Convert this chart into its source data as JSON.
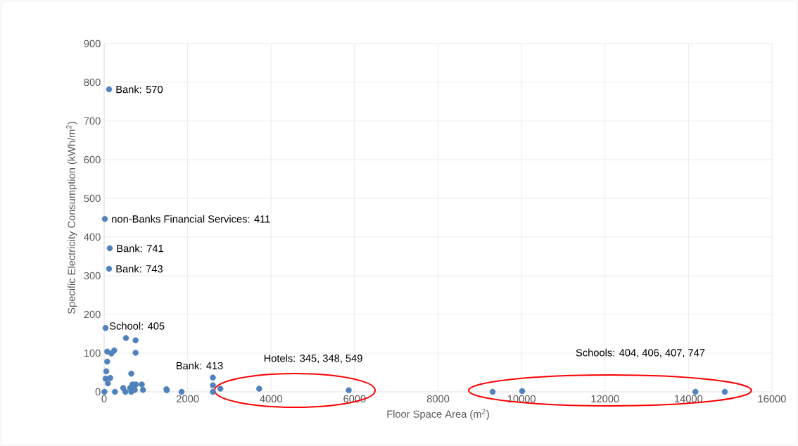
{
  "chart_data": {
    "type": "scatter",
    "xlabel": "Floor Space Area (m$^{2}$)",
    "ylabel": "Specific Electricity Consumption (kWh/m$^{2}$)",
    "x": [
      118,
      17,
      135,
      118,
      34,
      522,
      753,
      73,
      174,
      241,
      753,
      73,
      51,
      650,
      34,
      146,
      90,
      6,
      258,
      455,
      510,
      623,
      678,
      762,
      902,
      931,
      650,
      735,
      1492,
      1500,
      1855,
      2605,
      2605,
      2605,
      2785,
      3714,
      5860,
      9307,
      10015,
      14166,
      14870
    ],
    "values": [
      782,
      447,
      371,
      318,
      165,
      139,
      133,
      104,
      99,
      107,
      101,
      78,
      53,
      47,
      34,
      36,
      22,
      0,
      0,
      10,
      0,
      10,
      19,
      19,
      19,
      5,
      0,
      5,
      7,
      4,
      0,
      37,
      17,
      0,
      8,
      8,
      4,
      0,
      2,
      0,
      0
    ],
    "color": "#4f81bd",
    "marker": "circle",
    "grid": true,
    "xlim": [
      0,
      16000
    ],
    "ylim": [
      0,
      900
    ],
    "xticks": [
      0,
      2000,
      4000,
      6000,
      8000,
      10000,
      12000,
      14000,
      16000
    ],
    "yticks": [
      0,
      100,
      200,
      300,
      400,
      500,
      600,
      700,
      800,
      900
    ],
    "annotations": [
      {
        "text": "Bank: 570",
        "x": 118,
        "y": 782
      },
      {
        "text": "non-Banks Financial Services: 411",
        "x": 17,
        "y": 447
      },
      {
        "text": "Bank: 741",
        "x": 135,
        "y": 371
      },
      {
        "text": "Bank: 743",
        "x": 118,
        "y": 318
      },
      {
        "text": "School: 405",
        "x": 34,
        "y": 165
      },
      {
        "text": "Bank: 413",
        "x": 2605,
        "y": 37
      },
      "Hotels: 345, 348, 549",
      "Schools: 404, 406, 407, 747"
    ]
  }
}
